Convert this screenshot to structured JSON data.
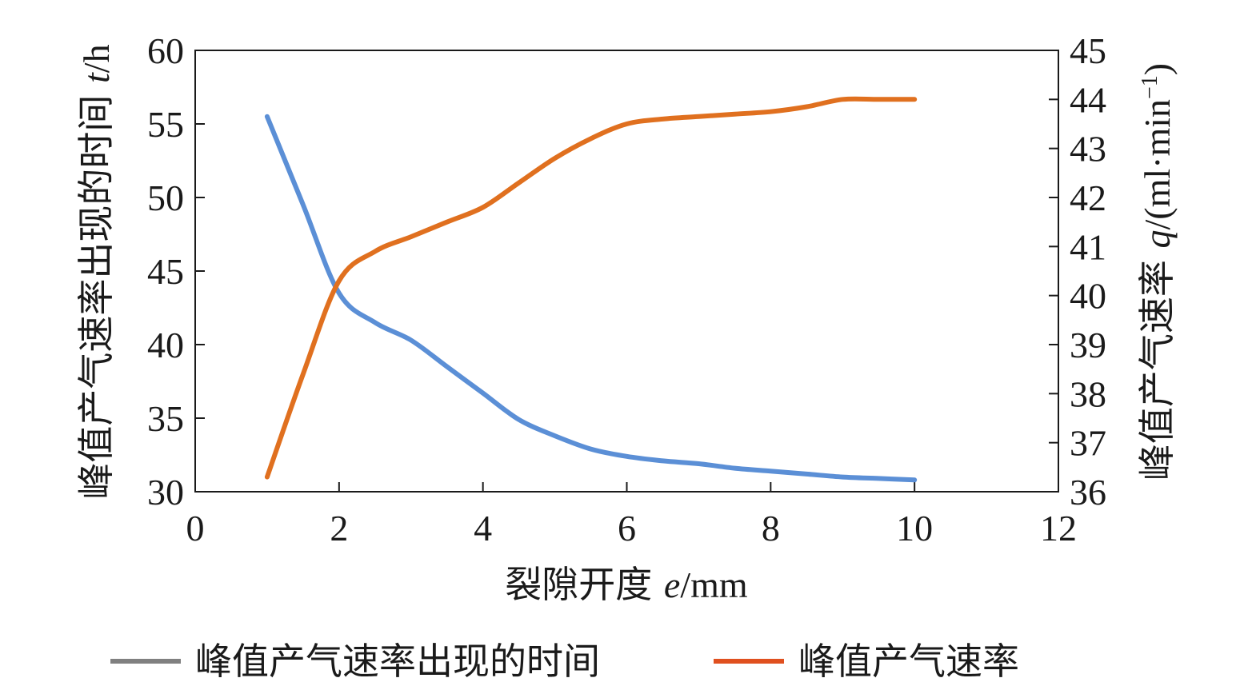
{
  "chart_data": {
    "type": "line",
    "x": [
      1,
      1.5,
      2,
      2.5,
      3,
      3.5,
      4,
      4.5,
      5,
      5.5,
      6,
      6.5,
      7,
      7.5,
      8,
      8.5,
      9,
      9.5,
      10
    ],
    "series": [
      {
        "name": "峰值产气速率出现的时间",
        "axis": "left",
        "color": "#5b8fd6",
        "values": [
          55.5,
          49.5,
          43.5,
          41.5,
          40.3,
          38.5,
          36.7,
          34.9,
          33.8,
          32.9,
          32.4,
          32.1,
          31.9,
          31.6,
          31.4,
          31.2,
          31.0,
          30.9,
          30.8
        ]
      },
      {
        "name": "峰值产气速率",
        "axis": "right",
        "color": "#e0701f",
        "values": [
          36.3,
          38.4,
          40.3,
          40.9,
          41.2,
          41.5,
          41.8,
          42.3,
          42.8,
          43.2,
          43.5,
          43.6,
          43.65,
          43.7,
          43.75,
          43.85,
          44.0,
          44.0,
          44.0
        ]
      }
    ],
    "xlabel": {
      "main": "裂隙开度 ",
      "var": "e",
      "unit": "/mm"
    },
    "ylabel_left": {
      "main": "峰值产气速率出现的时间 ",
      "var": "t",
      "unit": "/h"
    },
    "ylabel_right": {
      "main": "峰值产气速率 ",
      "var": "q",
      "unit": "/(ml·min",
      "sup": "−1",
      "close": ")"
    },
    "xlim": [
      0,
      12
    ],
    "xticks": [
      0,
      2,
      4,
      6,
      8,
      10,
      12
    ],
    "ylim_left": [
      30,
      60
    ],
    "yticks_left": [
      30,
      35,
      40,
      45,
      50,
      55,
      60
    ],
    "ylim_right": [
      36,
      45
    ],
    "yticks_right": [
      36,
      37,
      38,
      39,
      40,
      41,
      42,
      43,
      44,
      45
    ],
    "grid": false,
    "legend": {
      "position": "bottom",
      "entries": [
        {
          "label": "峰值产气速率出现的时间",
          "color": "#808080"
        },
        {
          "label": "峰值产气速率",
          "color": "#e0501f"
        }
      ]
    }
  }
}
